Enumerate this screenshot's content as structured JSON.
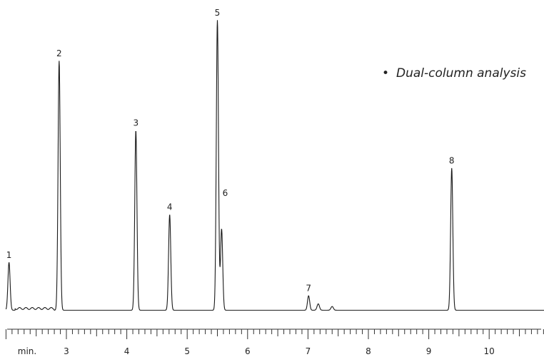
{
  "chart_data": {
    "type": "line",
    "title": "",
    "xlabel": "",
    "ylabel": "",
    "xunit_label": "min.",
    "xlim": [
      2.0,
      11.0
    ],
    "ylim": [
      0,
      100
    ],
    "grid": false,
    "legend": "none",
    "annotation": "Dual-column analysis",
    "x_tick_labels": [
      "3",
      "4",
      "5",
      "6",
      "7",
      "8",
      "9",
      "10"
    ],
    "x_ticks": [
      3,
      4,
      5,
      6,
      7,
      8,
      9,
      10
    ],
    "baseline": 0.8,
    "peaks": [
      {
        "label": "1",
        "x": 2.05,
        "y": 16.5
      },
      {
        "label": "2",
        "x": 2.88,
        "y": 86.0
      },
      {
        "label": "3",
        "x": 4.15,
        "y": 62.0
      },
      {
        "label": "4",
        "x": 4.71,
        "y": 33.0
      },
      {
        "label": "5",
        "x": 5.5,
        "y": 100.0
      },
      {
        "label": "6",
        "x": 5.57,
        "y": 28.0
      },
      {
        "label": "7",
        "x": 7.01,
        "y": 5.0
      },
      {
        "label": "8",
        "x": 9.38,
        "y": 49.0
      }
    ],
    "minor_peaks": [
      {
        "x": 7.17,
        "y": 2.2
      },
      {
        "x": 7.4,
        "y": 1.3
      }
    ],
    "line_color": "#1a1a1a"
  }
}
